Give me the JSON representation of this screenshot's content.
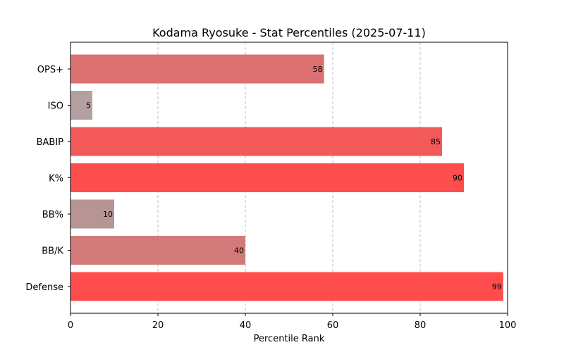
{
  "chart_data": {
    "type": "bar",
    "orientation": "horizontal",
    "title": "Kodama Ryosuke - Stat Percentiles (2025-07-11)",
    "xlabel": "Percentile Rank",
    "ylabel": "",
    "xlim": [
      0,
      100
    ],
    "xticks": [
      0,
      20,
      40,
      60,
      80,
      100
    ],
    "grid": "vertical dashed",
    "categories": [
      "OPS+",
      "ISO",
      "BABIP",
      "K%",
      "BB%",
      "BB/K",
      "Defense"
    ],
    "values": [
      58,
      5,
      85,
      90,
      10,
      40,
      99
    ],
    "bar_colors": [
      "#dc7070",
      "#b4a0a1",
      "#f45959",
      "#fd4d4d",
      "#b89595",
      "#d27a79",
      "#ff4c4c"
    ],
    "data_labels": [
      "58",
      "5",
      "85",
      "90",
      "10",
      "40",
      "99"
    ]
  }
}
